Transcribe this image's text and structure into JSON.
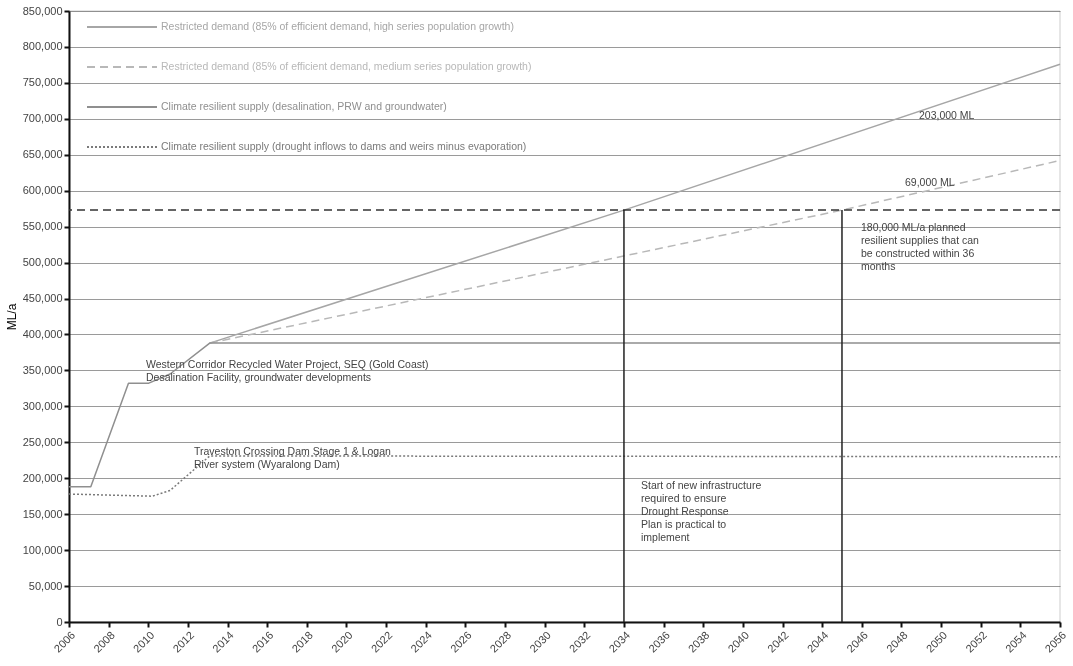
{
  "chart_data": {
    "type": "line",
    "ylabel": "ML/a",
    "xlim": [
      2006,
      2056
    ],
    "xticks": [
      2006,
      2008,
      2010,
      2012,
      2014,
      2016,
      2018,
      2020,
      2022,
      2024,
      2026,
      2028,
      2030,
      2032,
      2034,
      2036,
      2038,
      2040,
      2042,
      2044,
      2046,
      2048,
      2050,
      2052,
      2054,
      2056
    ],
    "ylim": [
      0,
      850000
    ],
    "yticks": [
      0,
      {
        "value": 50000,
        "label": "50,000"
      },
      {
        "value": 100000,
        "label": "100,000"
      },
      {
        "value": 150000,
        "label": "150,000"
      },
      {
        "value": 200000,
        "label": "200,000"
      },
      {
        "value": 250000,
        "label": "250,000"
      },
      {
        "value": 300000,
        "label": "300,000"
      },
      {
        "value": 350000,
        "label": "350,000"
      },
      {
        "value": 400000,
        "label": "400,000"
      },
      {
        "value": 450000,
        "label": "450,000"
      },
      {
        "value": 500000,
        "label": "500,000"
      },
      {
        "value": 550000,
        "label": "550,000"
      },
      {
        "value": 600000,
        "label": "600,000"
      },
      {
        "value": 650000,
        "label": "650,000"
      },
      {
        "value": 700000,
        "label": "700,000"
      },
      {
        "value": 750000,
        "label": "750,000"
      },
      {
        "value": 800000,
        "label": "800,000"
      },
      {
        "value": 850000,
        "label": "850,000"
      }
    ],
    "grid": "y",
    "legend": "top left",
    "marker": "none",
    "series": [
      {
        "name": "Restricted demand (85% of efficient demand, high series population growth)",
        "color": "#a6a6a6",
        "line_style": "solid",
        "x": [
          2013.1,
          2034,
          2056
        ],
        "values": [
          388000,
          573000,
          776000
        ]
      },
      {
        "name": "Restricted demand (85% of efficient demand, medium series population growth)",
        "color": "#b8b8b8",
        "line_style": "dashed",
        "x": [
          2013.1,
          2045,
          2056
        ],
        "values": [
          388000,
          573000,
          642000
        ]
      },
      {
        "name": "Climate resilient supply (desalination, PRW and groundwater)",
        "color": "#8f8f8f",
        "line_style": "solid",
        "x": [
          2006,
          2007.1,
          2009,
          2010,
          2011.1,
          2013.1,
          2056
        ],
        "values": [
          188000,
          188000,
          332000,
          332000,
          345000,
          388000,
          388000
        ]
      },
      {
        "name": "Climate resilient supply (drought inflows to dams and weirs minus evaporation)",
        "color": "#7a7a7a",
        "line_style": "dotted",
        "x": [
          2006,
          2010.2,
          2011.1,
          2013.1,
          2056
        ],
        "values": [
          178000,
          175000,
          183000,
          231000,
          230000
        ]
      }
    ],
    "ref_lines": [
      {
        "axis": "y",
        "value": 573000,
        "label": null,
        "color": "#333333",
        "line_style": "dashed"
      },
      {
        "axis": "x",
        "value": 2034,
        "label": null,
        "color": "#222222"
      },
      {
        "axis": "x",
        "value": 2045,
        "label": null,
        "color": "#222222"
      }
    ],
    "annotations": [
      "203,000 ML",
      "69,000 ML",
      "180,000 ML/a planned\nresilient supplies that can\nbe constructed within 36\nmonths",
      "Start of new infrastructure\nrequired to ensure\nDrought Response\nPlan is practical to\nimplement",
      "Western Corridor Recycled Water Project, SEQ (Gold Coast)\nDesalination Facility, groundwater developments",
      "Traveston Crossing Dam Stage 1 & Logan\nRiver system (Wyaralong Dam)"
    ]
  }
}
